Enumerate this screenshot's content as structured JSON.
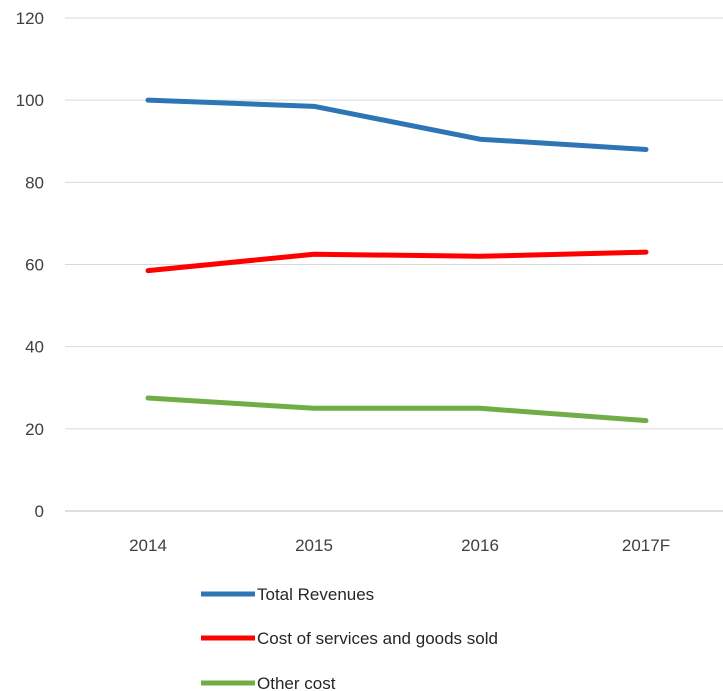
{
  "chart_data": {
    "type": "line",
    "categories": [
      "2014",
      "2015",
      "2016",
      "2017F"
    ],
    "ylim": [
      0,
      120
    ],
    "yticks": [
      "0",
      "20",
      "40",
      "60",
      "80",
      "100",
      "120"
    ],
    "grid": true,
    "legend_position": "bottom",
    "series": [
      {
        "name": "Total Revenues",
        "color": "#2E75B6",
        "values": [
          100,
          98.5,
          90.5,
          88
        ]
      },
      {
        "name": "Cost of services and goods sold",
        "color": "#FF0000",
        "values": [
          58.5,
          62.5,
          62,
          63
        ]
      },
      {
        "name": "Other cost",
        "color": "#70AD47",
        "values": [
          27.5,
          25,
          25,
          22
        ]
      }
    ]
  }
}
